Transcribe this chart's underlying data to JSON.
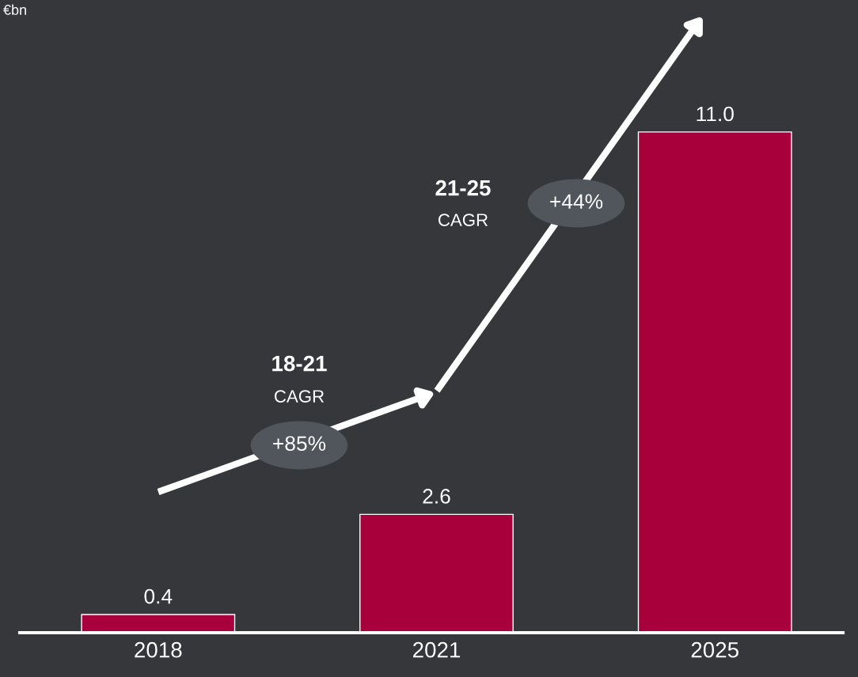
{
  "chart_data": {
    "type": "bar",
    "title": "€bn",
    "categories": [
      "2018",
      "2021",
      "2025"
    ],
    "values": [
      0.4,
      2.6,
      11.0
    ],
    "value_labels": [
      "0.4",
      "2.6",
      "11.0"
    ],
    "color": "#a8003b",
    "ylim": [
      0,
      13.9
    ],
    "tick_labels": "x",
    "grid": false,
    "annotations": [
      "18-21",
      "CAGR",
      "+85%",
      "21-25",
      "CAGR",
      "+44%"
    ]
  }
}
